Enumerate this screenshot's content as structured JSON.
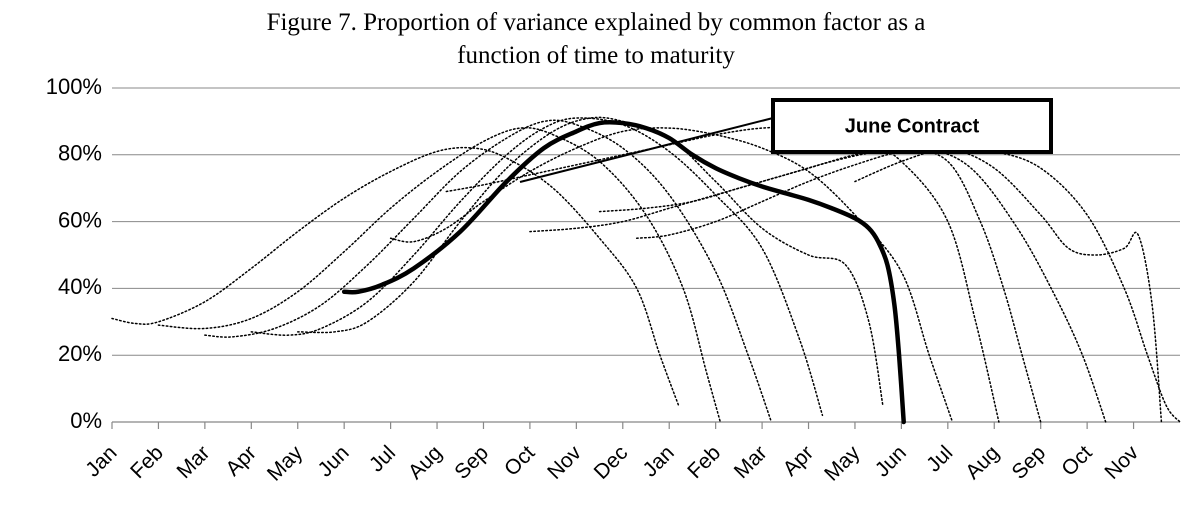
{
  "chart_data": {
    "type": "line",
    "title": [
      "Figure 7. Proportion of variance explained by common factor as a",
      "function of time to maturity"
    ],
    "xlim": [
      0,
      23
    ],
    "ylim": [
      0,
      100
    ],
    "xticks": [
      {
        "value": 0,
        "label": "Jan"
      },
      {
        "value": 1,
        "label": "Feb"
      },
      {
        "value": 2,
        "label": "Mar"
      },
      {
        "value": 3,
        "label": "Apr"
      },
      {
        "value": 4,
        "label": "May"
      },
      {
        "value": 5,
        "label": "Jun"
      },
      {
        "value": 6,
        "label": "Jul"
      },
      {
        "value": 7,
        "label": "Aug"
      },
      {
        "value": 8,
        "label": "Sep"
      },
      {
        "value": 9,
        "label": "Oct"
      },
      {
        "value": 10,
        "label": "Nov"
      },
      {
        "value": 11,
        "label": "Dec"
      },
      {
        "value": 12,
        "label": "Jan"
      },
      {
        "value": 13,
        "label": "Feb"
      },
      {
        "value": 14,
        "label": "Mar"
      },
      {
        "value": 15,
        "label": "Apr"
      },
      {
        "value": 16,
        "label": "May"
      },
      {
        "value": 17,
        "label": "Jun"
      },
      {
        "value": 18,
        "label": "Jul"
      },
      {
        "value": 19,
        "label": "Aug"
      },
      {
        "value": 20,
        "label": "Sep"
      },
      {
        "value": 21,
        "label": "Oct"
      },
      {
        "value": 22,
        "label": "Nov"
      }
    ],
    "yticks": [
      {
        "value": 0,
        "label": "0%"
      },
      {
        "value": 20,
        "label": "20%"
      },
      {
        "value": 40,
        "label": "40%"
      },
      {
        "value": 60,
        "label": "60%"
      },
      {
        "value": 80,
        "label": "80%"
      },
      {
        "value": 100,
        "label": "100%"
      }
    ],
    "grid": true,
    "series": [
      {
        "name": "June Contract",
        "color": "#000000",
        "style": "solid",
        "x": [
          5,
          5.3,
          5.8,
          6.5,
          7.5,
          8.5,
          9.3,
          10,
          10.5,
          11,
          11.5,
          12,
          12.5,
          13,
          13.5,
          14,
          14.5,
          15,
          15.5,
          16,
          16.3,
          16.5,
          16.7,
          16.85,
          16.95,
          17.05
        ],
        "values": [
          39,
          39,
          41,
          46,
          57,
          72,
          82,
          87,
          89.5,
          89.5,
          88,
          85,
          80,
          76,
          73,
          70.5,
          68.5,
          66.5,
          64,
          61,
          58,
          54,
          47,
          35,
          20,
          0
        ]
      },
      {
        "color": "#000000",
        "style": "dotted",
        "x": [
          0,
          0.5,
          1,
          2,
          3,
          4,
          5,
          6,
          7,
          7.8,
          8.5,
          9.5,
          10.5,
          11.3,
          11.8,
          12.2
        ],
        "values": [
          31,
          29.5,
          30,
          36,
          46,
          57,
          67,
          75,
          81,
          82,
          79,
          70,
          55,
          40,
          20,
          5
        ]
      },
      {
        "color": "#000000",
        "style": "dotted",
        "x": [
          1,
          2,
          3,
          4,
          5,
          6,
          7,
          8,
          8.8,
          9.5,
          10.5,
          11.5,
          12.3,
          12.8,
          13.1
        ],
        "values": [
          29,
          28,
          31,
          39,
          51,
          64,
          75,
          84,
          88,
          86,
          78,
          62,
          40,
          15,
          0
        ]
      },
      {
        "color": "#000000",
        "style": "dotted",
        "x": [
          2,
          2.6,
          3.5,
          4.5,
          5.5,
          6.5,
          7.5,
          8.5,
          9.3,
          10,
          11,
          12,
          13,
          13.7,
          14.2
        ],
        "values": [
          26,
          25.5,
          28,
          35,
          47,
          61,
          75,
          85,
          90,
          89,
          82,
          68,
          45,
          20,
          0
        ]
      },
      {
        "color": "#000000",
        "style": "dotted",
        "x": [
          3,
          3.8,
          4.5,
          5.5,
          6.5,
          7.5,
          8.5,
          9.3,
          10,
          11,
          12,
          13,
          14,
          14.8,
          15.3
        ],
        "values": [
          27,
          26,
          28,
          36,
          50,
          66,
          80,
          88,
          91,
          89,
          81,
          68,
          52,
          25,
          2
        ]
      },
      {
        "color": "#000000",
        "style": "dotted",
        "x": [
          4,
          4.8,
          5.5,
          6.5,
          7.5,
          8.5,
          9.5,
          10.3,
          11,
          12,
          13,
          14,
          15,
          15.8,
          16.3,
          16.6
        ],
        "values": [
          27,
          27,
          30,
          42,
          60,
          76,
          87,
          91,
          90,
          85,
          72,
          58,
          50,
          47,
          30,
          5
        ]
      },
      {
        "color": "#000000",
        "style": "dotted",
        "x": [
          6,
          6.5,
          7.2,
          8,
          9,
          10,
          11,
          12,
          13,
          14,
          15,
          16,
          17,
          17.6,
          18.1
        ],
        "values": [
          55,
          54,
          58,
          66,
          75,
          82,
          87,
          88,
          86,
          82,
          75,
          62,
          45,
          20,
          0
        ]
      },
      {
        "color": "#000000",
        "style": "dotted",
        "x": [
          7.2,
          8,
          9,
          10,
          11,
          12,
          13,
          14,
          15,
          16,
          17,
          18,
          18.6,
          19.1
        ],
        "values": [
          69,
          71,
          74,
          77,
          80,
          83,
          86,
          88,
          88,
          86,
          78,
          60,
          30,
          0
        ]
      },
      {
        "color": "#000000",
        "style": "dotted",
        "x": [
          9,
          10,
          11,
          12,
          13,
          14,
          15,
          16,
          17,
          18,
          18.7,
          19.2,
          19.6,
          20
        ],
        "values": [
          57,
          58,
          60,
          64,
          68,
          72,
          76,
          80,
          82,
          78,
          60,
          40,
          20,
          0
        ]
      },
      {
        "color": "#000000",
        "style": "dotted",
        "x": [
          10.5,
          11.5,
          12.5,
          13.5,
          14.5,
          15.5,
          16.5,
          17.5,
          18.5,
          19.5,
          20.3,
          20.9,
          21.4
        ],
        "values": [
          63,
          64,
          66,
          70,
          74,
          78,
          81,
          82,
          76,
          58,
          38,
          20,
          0
        ]
      },
      {
        "color": "#000000",
        "style": "dotted",
        "x": [
          11.3,
          12,
          13,
          14,
          15,
          16,
          17,
          18,
          19,
          20,
          20.6,
          21.2,
          21.8,
          22.1,
          22.4,
          22.6
        ],
        "values": [
          55,
          56,
          60,
          66,
          72,
          77,
          81,
          82,
          76,
          62,
          52,
          50,
          52,
          56,
          35,
          0
        ]
      },
      {
        "color": "#000000",
        "style": "dotted",
        "x": [
          16,
          17,
          18,
          19,
          20,
          21,
          21.8,
          22.3,
          22.7,
          23
        ],
        "values": [
          72,
          78,
          82,
          81,
          76,
          62,
          40,
          20,
          5,
          0
        ]
      }
    ]
  }
}
